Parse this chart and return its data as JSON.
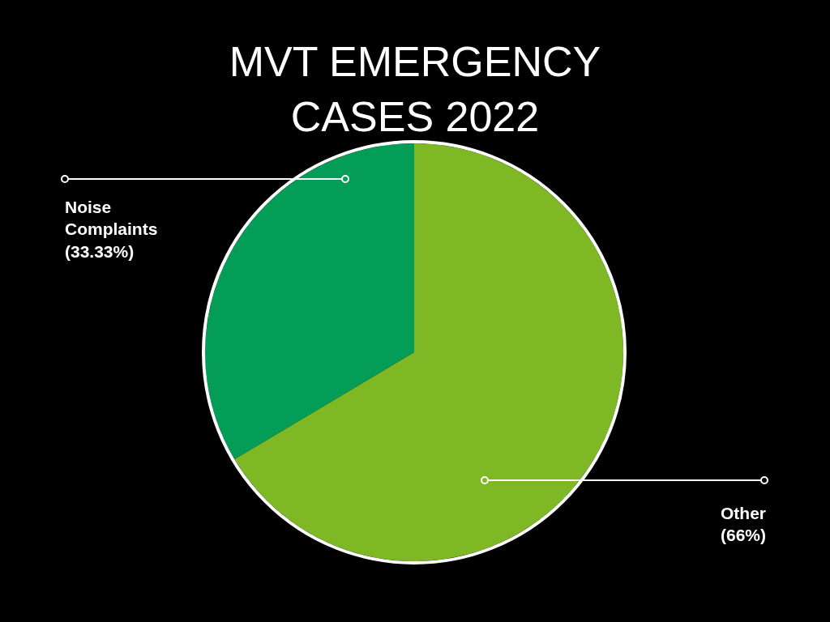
{
  "chart_data": {
    "type": "pie",
    "title": "MVT EMERGENCY CASES 2022",
    "categories": [
      "Noise Complaints",
      "Other"
    ],
    "values": [
      33.33,
      66
    ],
    "colors": [
      "#049d57",
      "#7eb925"
    ],
    "value_labels": [
      "(33.33%)",
      "(66%)"
    ]
  }
}
